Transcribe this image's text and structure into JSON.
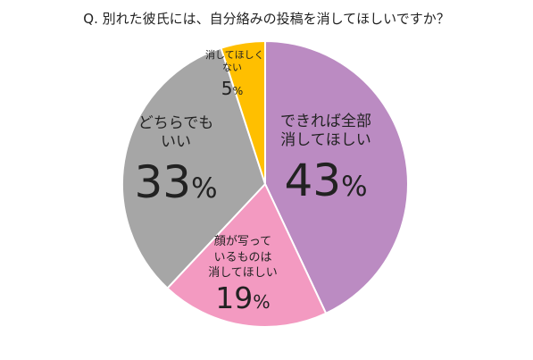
{
  "chart_data": {
    "type": "pie",
    "title": "Q. 別れた彼氏には、自分絡みの投稿を消してほしいですか？",
    "slices": [
      {
        "name_lines": [
          "できれば全部",
          "消してほしい"
        ],
        "value": 43,
        "value_label": "43",
        "unit": "%",
        "color": "#bb8bc2"
      },
      {
        "name_lines": [
          "顔が写って",
          "いるものは",
          "消してほしい"
        ],
        "value": 19,
        "value_label": "19",
        "unit": "%",
        "color": "#f39ac1"
      },
      {
        "name_lines": [
          "どちらでも",
          "いい"
        ],
        "value": 33,
        "value_label": "33",
        "unit": "%",
        "color": "#a6a6a6"
      },
      {
        "name_lines": [
          "消してほしく",
          "ない"
        ],
        "value": 5,
        "value_label": "5",
        "unit": "%",
        "color": "#ffbf00"
      }
    ],
    "start_angle_deg": 0,
    "direction": "clockwise",
    "slice_border_color": "#ffffff"
  }
}
